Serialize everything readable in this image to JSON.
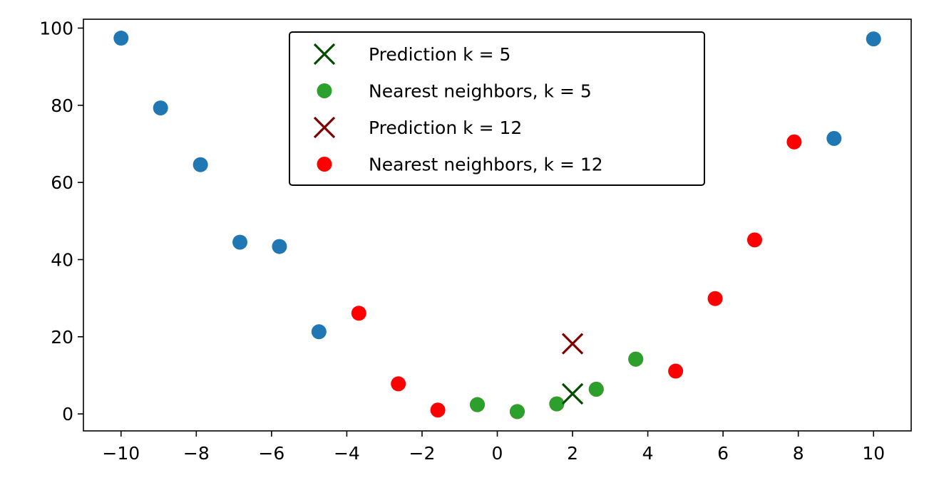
{
  "chart_data": {
    "type": "scatter",
    "title": "",
    "xlabel": "",
    "ylabel": "",
    "xlim": [
      -11,
      11
    ],
    "ylim": [
      -4.4,
      102.3
    ],
    "xticks": [
      -10,
      -8,
      -6,
      -4,
      -2,
      0,
      2,
      4,
      6,
      8,
      10
    ],
    "xtick_labels": [
      "−10",
      "−8",
      "−6",
      "−4",
      "−2",
      "0",
      "2",
      "4",
      "6",
      "8",
      "10"
    ],
    "yticks": [
      0,
      20,
      40,
      60,
      80,
      100
    ],
    "ytick_labels": [
      "0",
      "20",
      "40",
      "60",
      "80",
      "100"
    ],
    "grid": false,
    "legend_position": "top-center",
    "series": [
      {
        "marker": "circle",
        "color": "#1f77b4",
        "points": [
          {
            "x": -10.0,
            "y": 97.4
          },
          {
            "x": -8.95,
            "y": 79.3
          },
          {
            "x": -7.89,
            "y": 64.6
          },
          {
            "x": -6.84,
            "y": 44.5
          },
          {
            "x": -5.79,
            "y": 43.4
          },
          {
            "x": -4.74,
            "y": 21.3
          },
          {
            "x": 8.95,
            "y": 71.4
          },
          {
            "x": 10.0,
            "y": 97.2
          }
        ]
      },
      {
        "name": "Nearest neighbors, k = 12",
        "marker": "circle",
        "color": "#ff0000",
        "points": [
          {
            "x": -3.68,
            "y": 26.1
          },
          {
            "x": -2.63,
            "y": 7.8
          },
          {
            "x": -1.58,
            "y": 1.0
          },
          {
            "x": -0.53,
            "y": 2.4
          },
          {
            "x": 0.53,
            "y": 0.6
          },
          {
            "x": 1.58,
            "y": 2.6
          },
          {
            "x": 2.63,
            "y": 6.4
          },
          {
            "x": 3.68,
            "y": 14.2
          },
          {
            "x": 4.74,
            "y": 11.1
          },
          {
            "x": 5.79,
            "y": 29.9
          },
          {
            "x": 6.84,
            "y": 45.1
          },
          {
            "x": 7.89,
            "y": 70.5
          }
        ]
      },
      {
        "name": "Nearest neighbors, k = 5",
        "marker": "circle",
        "color": "#2ca02c",
        "points": [
          {
            "x": -0.53,
            "y": 2.4
          },
          {
            "x": 0.53,
            "y": 0.6
          },
          {
            "x": 1.58,
            "y": 2.6
          },
          {
            "x": 2.63,
            "y": 6.4
          },
          {
            "x": 3.68,
            "y": 14.2
          }
        ]
      },
      {
        "name": "Prediction k = 5",
        "marker": "x",
        "color": "#004d00",
        "points": [
          {
            "x": 2.0,
            "y": 5.2
          }
        ]
      },
      {
        "name": "Prediction k = 12",
        "marker": "x",
        "color": "#800000",
        "points": [
          {
            "x": 2.0,
            "y": 18.2
          }
        ]
      }
    ],
    "legend": [
      {
        "label": "Prediction k = 5",
        "marker": "x",
        "color": "#004d00"
      },
      {
        "label": "Nearest neighbors, k = 5",
        "marker": "circle",
        "color": "#2ca02c"
      },
      {
        "label": "Prediction k = 12",
        "marker": "x",
        "color": "#800000"
      },
      {
        "label": "Nearest neighbors, k = 12",
        "marker": "circle",
        "color": "#ff0000"
      }
    ]
  }
}
